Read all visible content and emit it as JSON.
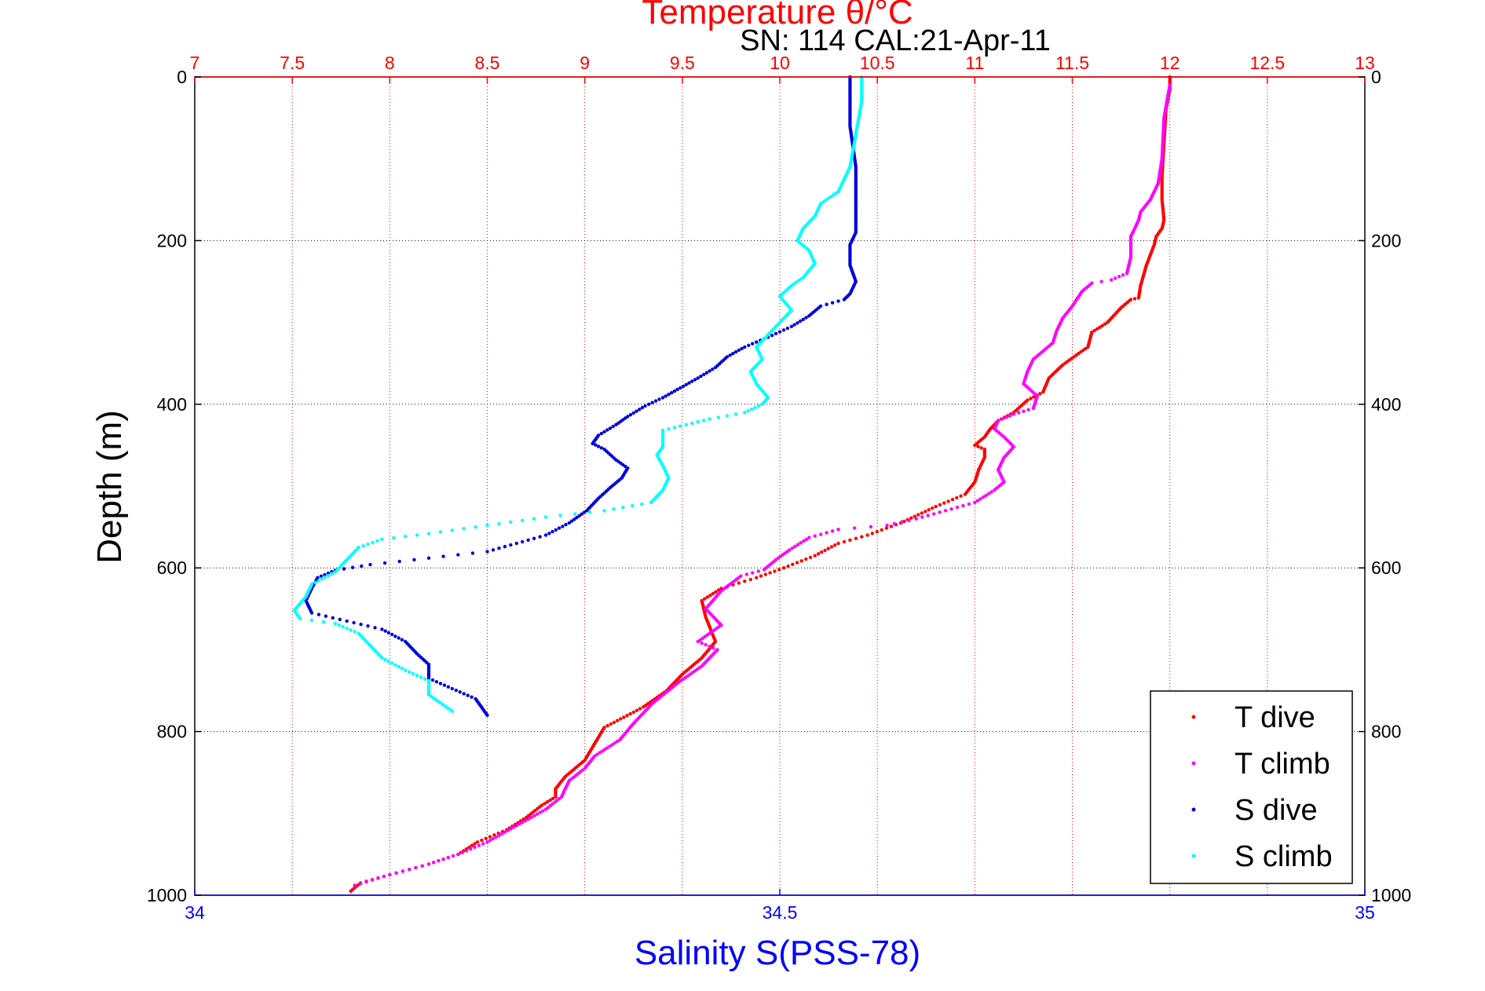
{
  "chart_data": {
    "type": "scatter",
    "title": "Temperature θ/°C",
    "subtitle": "SN: 114  CAL:21-Apr-11",
    "ylabel": "Depth (m)",
    "xlabel": "Salinity S(PSS-78)",
    "x_top": {
      "label": "Temperature θ/°C",
      "range": [
        7,
        13
      ],
      "ticks": [
        "7",
        "7.5",
        "8",
        "8.5",
        "9",
        "9.5",
        "10",
        "10.5",
        "11",
        "11.5",
        "12",
        "12.5",
        "13"
      ]
    },
    "x_bottom": {
      "label": "Salinity S(PSS-78)",
      "range": [
        34,
        35
      ],
      "ticks": [
        "34",
        "34.5",
        "35"
      ]
    },
    "y": {
      "range": [
        0,
        1000
      ],
      "reversed": true,
      "ticks": [
        "0",
        "200",
        "400",
        "600",
        "800",
        "1000"
      ]
    },
    "grid": true,
    "legend": {
      "placement": "bottom-right",
      "entries": [
        "T dive",
        "T climb",
        "S dive",
        "S climb"
      ]
    },
    "colors": {
      "temp_axis": "#ff0000",
      "sal_axis": "#0000ff",
      "t_dive": "#ff0000",
      "t_climb": "#ff00ff",
      "s_dive": "#0000dd",
      "s_climb": "#00ffff"
    },
    "series": [
      {
        "name": "T dive",
        "axis": "temperature",
        "color": "#ff0000",
        "points": [
          [
            12.0,
            0
          ],
          [
            12.0,
            15
          ],
          [
            11.98,
            40
          ],
          [
            11.97,
            80
          ],
          [
            11.96,
            120
          ],
          [
            11.96,
            150
          ],
          [
            11.97,
            175
          ],
          [
            11.96,
            185
          ],
          [
            11.93,
            195
          ],
          [
            11.92,
            205
          ],
          [
            11.88,
            230
          ],
          [
            11.85,
            255
          ],
          [
            11.84,
            270
          ],
          [
            11.8,
            272
          ],
          [
            11.75,
            282
          ],
          [
            11.68,
            300
          ],
          [
            11.6,
            312
          ],
          [
            11.58,
            330
          ],
          [
            11.52,
            340
          ],
          [
            11.45,
            352
          ],
          [
            11.38,
            368
          ],
          [
            11.35,
            385
          ],
          [
            11.27,
            395
          ],
          [
            11.2,
            410
          ],
          [
            11.12,
            420
          ],
          [
            11.08,
            430
          ],
          [
            11.05,
            440
          ],
          [
            11.0,
            450
          ],
          [
            11.05,
            455
          ],
          [
            11.05,
            465
          ],
          [
            11.02,
            480
          ],
          [
            11.0,
            495
          ],
          [
            10.95,
            510
          ],
          [
            10.8,
            525
          ],
          [
            10.62,
            545
          ],
          [
            10.45,
            560
          ],
          [
            10.3,
            570
          ],
          [
            10.18,
            585
          ],
          [
            10.02,
            600
          ],
          [
            9.88,
            612
          ],
          [
            9.7,
            625
          ],
          [
            9.6,
            640
          ],
          [
            9.62,
            660
          ],
          [
            9.67,
            690
          ],
          [
            9.6,
            710
          ],
          [
            9.5,
            730
          ],
          [
            9.42,
            750
          ],
          [
            9.3,
            770
          ],
          [
            9.1,
            795
          ],
          [
            9.05,
            815
          ],
          [
            9.0,
            835
          ],
          [
            8.9,
            855
          ],
          [
            8.85,
            870
          ],
          [
            8.85,
            880
          ],
          [
            8.78,
            890
          ],
          [
            8.7,
            905
          ],
          [
            8.6,
            920
          ],
          [
            8.45,
            935
          ],
          [
            8.35,
            950
          ],
          [
            8.2,
            962
          ],
          [
            8.0,
            975
          ],
          [
            7.85,
            985
          ],
          [
            7.8,
            995
          ]
        ]
      },
      {
        "name": "T climb",
        "axis": "temperature",
        "color": "#ff00ff",
        "points": [
          [
            12.0,
            10
          ],
          [
            11.97,
            50
          ],
          [
            11.96,
            100
          ],
          [
            11.94,
            130
          ],
          [
            11.9,
            150
          ],
          [
            11.85,
            165
          ],
          [
            11.84,
            175
          ],
          [
            11.82,
            185
          ],
          [
            11.8,
            195
          ],
          [
            11.8,
            220
          ],
          [
            11.78,
            240
          ],
          [
            11.7,
            248
          ],
          [
            11.6,
            252
          ],
          [
            11.55,
            262
          ],
          [
            11.5,
            280
          ],
          [
            11.45,
            295
          ],
          [
            11.42,
            310
          ],
          [
            11.4,
            325
          ],
          [
            11.35,
            335
          ],
          [
            11.3,
            345
          ],
          [
            11.27,
            360
          ],
          [
            11.25,
            375
          ],
          [
            11.32,
            390
          ],
          [
            11.3,
            405
          ],
          [
            11.2,
            412
          ],
          [
            11.12,
            420
          ],
          [
            11.1,
            430
          ],
          [
            11.15,
            440
          ],
          [
            11.2,
            452
          ],
          [
            11.15,
            465
          ],
          [
            11.12,
            480
          ],
          [
            11.15,
            495
          ],
          [
            11.1,
            505
          ],
          [
            11.0,
            520
          ],
          [
            10.85,
            530
          ],
          [
            10.7,
            540
          ],
          [
            10.55,
            548
          ],
          [
            10.3,
            553
          ],
          [
            10.15,
            563
          ],
          [
            10.05,
            578
          ],
          [
            9.98,
            590
          ],
          [
            9.92,
            602
          ],
          [
            9.8,
            610
          ],
          [
            9.7,
            628
          ],
          [
            9.62,
            650
          ],
          [
            9.7,
            670
          ],
          [
            9.58,
            690
          ],
          [
            9.68,
            700
          ],
          [
            9.6,
            720
          ],
          [
            9.48,
            740
          ],
          [
            9.35,
            765
          ],
          [
            9.25,
            790
          ],
          [
            9.18,
            810
          ],
          [
            9.05,
            830
          ],
          [
            9.0,
            845
          ],
          [
            8.92,
            860
          ],
          [
            8.88,
            880
          ],
          [
            8.8,
            895
          ],
          [
            8.65,
            915
          ],
          [
            8.5,
            935
          ],
          [
            8.35,
            950
          ],
          [
            8.2,
            962
          ],
          [
            8.0,
            975
          ],
          [
            7.82,
            988
          ]
        ]
      },
      {
        "name": "S dive",
        "axis": "salinity",
        "color": "#0000dd",
        "points": [
          [
            34.56,
            0
          ],
          [
            34.56,
            20
          ],
          [
            34.56,
            60
          ],
          [
            34.565,
            110
          ],
          [
            34.565,
            150
          ],
          [
            34.565,
            190
          ],
          [
            34.56,
            205
          ],
          [
            34.56,
            230
          ],
          [
            34.565,
            250
          ],
          [
            34.56,
            265
          ],
          [
            34.555,
            272
          ],
          [
            34.535,
            280
          ],
          [
            34.525,
            292
          ],
          [
            34.51,
            305
          ],
          [
            34.49,
            318
          ],
          [
            34.47,
            330
          ],
          [
            34.455,
            342
          ],
          [
            34.445,
            355
          ],
          [
            34.43,
            368
          ],
          [
            34.415,
            380
          ],
          [
            34.4,
            392
          ],
          [
            34.385,
            402
          ],
          [
            34.37,
            415
          ],
          [
            34.36,
            425
          ],
          [
            34.345,
            438
          ],
          [
            34.34,
            448
          ],
          [
            34.35,
            455
          ],
          [
            34.36,
            468
          ],
          [
            34.37,
            478
          ],
          [
            34.365,
            490
          ],
          [
            34.355,
            502
          ],
          [
            34.345,
            515
          ],
          [
            34.335,
            530
          ],
          [
            34.32,
            545
          ],
          [
            34.3,
            560
          ],
          [
            34.27,
            572
          ],
          [
            34.25,
            580
          ],
          [
            34.2,
            588
          ],
          [
            34.15,
            596
          ],
          [
            34.12,
            603
          ],
          [
            34.105,
            612
          ],
          [
            34.1,
            625
          ],
          [
            34.095,
            640
          ],
          [
            34.1,
            655
          ],
          [
            34.13,
            665
          ],
          [
            34.16,
            675
          ],
          [
            34.18,
            690
          ],
          [
            34.19,
            705
          ],
          [
            34.2,
            718
          ],
          [
            34.2,
            735
          ],
          [
            34.24,
            760
          ],
          [
            34.25,
            780
          ]
        ]
      },
      {
        "name": "S climb",
        "axis": "salinity",
        "color": "#00ffff",
        "points": [
          [
            34.57,
            0
          ],
          [
            34.57,
            30
          ],
          [
            34.565,
            70
          ],
          [
            34.56,
            110
          ],
          [
            34.55,
            140
          ],
          [
            34.535,
            155
          ],
          [
            34.53,
            170
          ],
          [
            34.52,
            185
          ],
          [
            34.515,
            200
          ],
          [
            34.525,
            212
          ],
          [
            34.53,
            228
          ],
          [
            34.52,
            245
          ],
          [
            34.51,
            255
          ],
          [
            34.5,
            268
          ],
          [
            34.51,
            285
          ],
          [
            34.5,
            300
          ],
          [
            34.49,
            315
          ],
          [
            34.48,
            330
          ],
          [
            34.485,
            345
          ],
          [
            34.475,
            360
          ],
          [
            34.48,
            375
          ],
          [
            34.49,
            392
          ],
          [
            34.485,
            400
          ],
          [
            34.47,
            410
          ],
          [
            34.44,
            418
          ],
          [
            34.42,
            425
          ],
          [
            34.4,
            432
          ],
          [
            34.4,
            440
          ],
          [
            34.4,
            452
          ],
          [
            34.395,
            462
          ],
          [
            34.4,
            475
          ],
          [
            34.405,
            490
          ],
          [
            34.4,
            505
          ],
          [
            34.39,
            520
          ],
          [
            34.35,
            530
          ],
          [
            34.3,
            538
          ],
          [
            34.25,
            548
          ],
          [
            34.2,
            558
          ],
          [
            34.16,
            565
          ],
          [
            34.14,
            575
          ],
          [
            34.13,
            590
          ],
          [
            34.12,
            605
          ],
          [
            34.1,
            620
          ],
          [
            34.095,
            635
          ],
          [
            34.085,
            652
          ],
          [
            34.09,
            662
          ],
          [
            34.12,
            668
          ],
          [
            34.14,
            680
          ],
          [
            34.15,
            695
          ],
          [
            34.16,
            710
          ],
          [
            34.18,
            725
          ],
          [
            34.2,
            738
          ],
          [
            34.2,
            755
          ],
          [
            34.22,
            775
          ]
        ]
      }
    ]
  },
  "legend_labels": {
    "t_dive": "T dive",
    "t_climb": "T climb",
    "s_dive": "S dive",
    "s_climb": "S climb"
  }
}
